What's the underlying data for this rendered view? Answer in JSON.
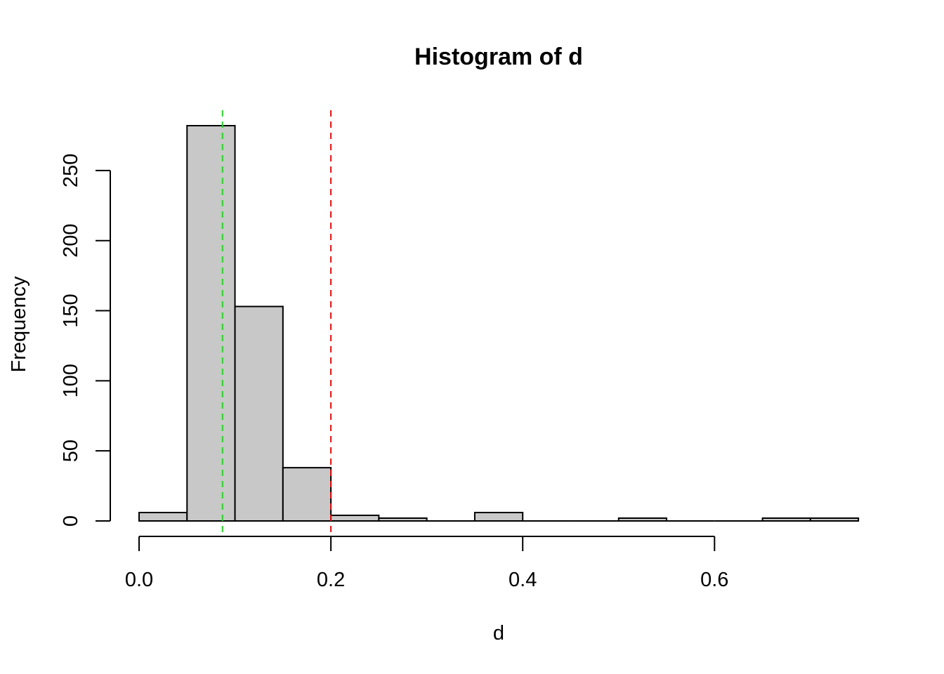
{
  "chart_data": {
    "type": "bar",
    "title": "Histogram of d",
    "xlabel": "d",
    "ylabel": "Frequency",
    "bins": [
      {
        "start": 0.0,
        "end": 0.05,
        "count": 6
      },
      {
        "start": 0.05,
        "end": 0.1,
        "count": 282
      },
      {
        "start": 0.1,
        "end": 0.15,
        "count": 153
      },
      {
        "start": 0.15,
        "end": 0.2,
        "count": 38
      },
      {
        "start": 0.2,
        "end": 0.25,
        "count": 4
      },
      {
        "start": 0.25,
        "end": 0.3,
        "count": 2
      },
      {
        "start": 0.3,
        "end": 0.35,
        "count": 0
      },
      {
        "start": 0.35,
        "end": 0.4,
        "count": 6
      },
      {
        "start": 0.4,
        "end": 0.45,
        "count": 0
      },
      {
        "start": 0.45,
        "end": 0.5,
        "count": 0
      },
      {
        "start": 0.5,
        "end": 0.55,
        "count": 2
      },
      {
        "start": 0.55,
        "end": 0.6,
        "count": 0
      },
      {
        "start": 0.6,
        "end": 0.65,
        "count": 0
      },
      {
        "start": 0.65,
        "end": 0.7,
        "count": 2
      },
      {
        "start": 0.7,
        "end": 0.75,
        "count": 2
      }
    ],
    "xlim": [
      0,
      0.75
    ],
    "ylim": [
      0,
      282
    ],
    "xticks": [
      0.0,
      0.2,
      0.4,
      0.6
    ],
    "xtick_labels": [
      "0.0",
      "0.2",
      "0.4",
      "0.6"
    ],
    "yticks": [
      0,
      50,
      100,
      150,
      200,
      250
    ],
    "ytick_labels": [
      "0",
      "50",
      "100",
      "150",
      "200",
      "250"
    ],
    "reference_lines": [
      {
        "x": 0.087,
        "color": "#00ee00",
        "style": "dashed"
      },
      {
        "x": 0.2,
        "color": "#ff0000",
        "style": "dashed"
      }
    ],
    "bar_fill": "#c8c8c8",
    "grid": false
  }
}
